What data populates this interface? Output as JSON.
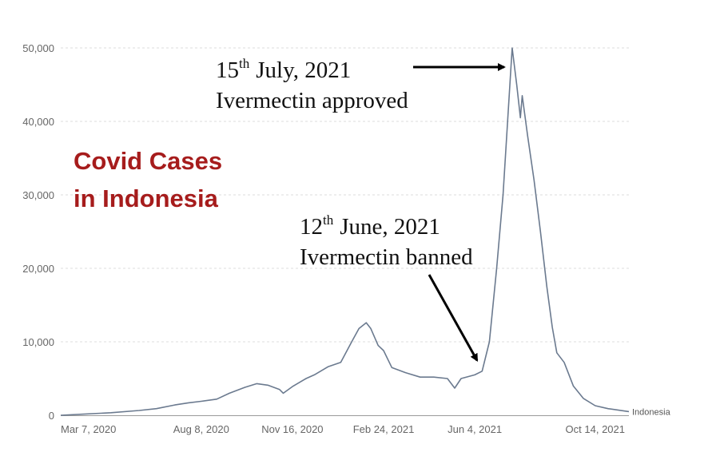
{
  "chart_data": {
    "type": "line",
    "title_lines": [
      "Covid Cases",
      "in Indonesia"
    ],
    "ylim": [
      0,
      50000
    ],
    "yticks": [
      {
        "value": 0,
        "label": "0"
      },
      {
        "value": 10000,
        "label": "10,000"
      },
      {
        "value": 20000,
        "label": "20,000"
      },
      {
        "value": 30000,
        "label": "30,000"
      },
      {
        "value": 40000,
        "label": "40,000"
      },
      {
        "value": 50000,
        "label": "50,000"
      }
    ],
    "xlim": [
      "2020-03-07",
      "2021-11-20"
    ],
    "xticks": [
      {
        "date": "2020-03-07",
        "label": "Mar 7, 2020"
      },
      {
        "date": "2020-08-08",
        "label": "Aug 8, 2020"
      },
      {
        "date": "2020-11-16",
        "label": "Nov 16, 2020"
      },
      {
        "date": "2021-02-24",
        "label": "Feb 24, 2021"
      },
      {
        "date": "2021-06-04",
        "label": "Jun 4, 2021"
      },
      {
        "date": "2021-10-14",
        "label": "Oct 14, 2021"
      }
    ],
    "grid": true,
    "series": [
      {
        "name": "Indonesia",
        "color": "#6b7a8f",
        "points": [
          [
            "2020-03-07",
            0
          ],
          [
            "2020-04-01",
            150
          ],
          [
            "2020-05-01",
            350
          ],
          [
            "2020-06-01",
            650
          ],
          [
            "2020-06-20",
            900
          ],
          [
            "2020-07-10",
            1400
          ],
          [
            "2020-07-25",
            1700
          ],
          [
            "2020-08-08",
            1900
          ],
          [
            "2020-08-25",
            2200
          ],
          [
            "2020-09-08",
            3000
          ],
          [
            "2020-09-25",
            3800
          ],
          [
            "2020-10-08",
            4300
          ],
          [
            "2020-10-20",
            4100
          ],
          [
            "2020-11-02",
            3500
          ],
          [
            "2020-11-06",
            3000
          ],
          [
            "2020-11-16",
            3900
          ],
          [
            "2020-12-01",
            5000
          ],
          [
            "2020-12-10",
            5500
          ],
          [
            "2020-12-25",
            6600
          ],
          [
            "2021-01-08",
            7200
          ],
          [
            "2021-01-20",
            10000
          ],
          [
            "2021-01-28",
            11800
          ],
          [
            "2021-02-05",
            12600
          ],
          [
            "2021-02-10",
            11800
          ],
          [
            "2021-02-18",
            9500
          ],
          [
            "2021-02-24",
            8800
          ],
          [
            "2021-03-05",
            6500
          ],
          [
            "2021-03-20",
            5800
          ],
          [
            "2021-04-05",
            5200
          ],
          [
            "2021-04-20",
            5200
          ],
          [
            "2021-05-05",
            5000
          ],
          [
            "2021-05-13",
            3700
          ],
          [
            "2021-05-20",
            5000
          ],
          [
            "2021-06-04",
            5500
          ],
          [
            "2021-06-12",
            6000
          ],
          [
            "2021-06-20",
            10000
          ],
          [
            "2021-06-28",
            20000
          ],
          [
            "2021-07-05",
            30000
          ],
          [
            "2021-07-10",
            40000
          ],
          [
            "2021-07-15",
            50000
          ],
          [
            "2021-07-20",
            45000
          ],
          [
            "2021-07-24",
            40500
          ],
          [
            "2021-07-26",
            43500
          ],
          [
            "2021-08-01",
            38000
          ],
          [
            "2021-08-08",
            32000
          ],
          [
            "2021-08-15",
            25000
          ],
          [
            "2021-08-22",
            17500
          ],
          [
            "2021-08-28",
            12000
          ],
          [
            "2021-09-02",
            8500
          ],
          [
            "2021-09-10",
            7200
          ],
          [
            "2021-09-20",
            4000
          ],
          [
            "2021-10-01",
            2300
          ],
          [
            "2021-10-14",
            1300
          ],
          [
            "2021-10-28",
            900
          ],
          [
            "2021-11-20",
            500
          ]
        ]
      }
    ],
    "annotations": [
      {
        "id": "approved",
        "date_base": "15",
        "date_sup": "th",
        "date_rest": "July, 2021",
        "text": "Ivermectin approved",
        "point": [
          "2021-07-15",
          47000
        ]
      },
      {
        "id": "banned",
        "date_base": "12",
        "date_sup": "th",
        "date_rest": "June, 2021",
        "text": "Ivermectin banned",
        "point": [
          "2021-06-10",
          6600
        ]
      }
    ]
  }
}
